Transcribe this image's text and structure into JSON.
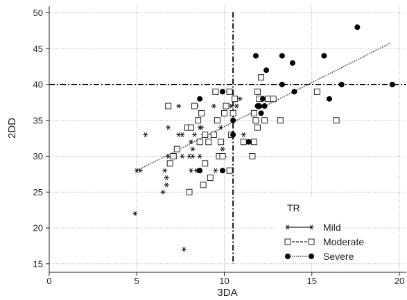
{
  "chart_data": {
    "type": "scatter",
    "xlabel": "3DA",
    "ylabel": "2DD",
    "xlim": [
      0,
      20
    ],
    "ylim": [
      15,
      50
    ],
    "x_ticks": [
      "0",
      "5",
      "10",
      "15",
      "20"
    ],
    "y_ticks": [
      "15",
      "20",
      "25",
      "30",
      "35",
      "40",
      "45",
      "50"
    ],
    "grid": true,
    "reference_lines": {
      "x": 10.5,
      "y": 40
    },
    "trend_line": {
      "from": [
        5,
        28
      ],
      "to": [
        19.5,
        45.8
      ]
    },
    "legend": {
      "title": "TR",
      "placement": "bottom-right",
      "entries": [
        {
          "label": "Mild",
          "marker": "asterisk"
        },
        {
          "label": "Moderate",
          "marker": "square"
        },
        {
          "label": "Severe",
          "marker": "circle"
        }
      ]
    },
    "series": [
      {
        "name": "Mild",
        "points": [
          [
            4.9,
            22
          ],
          [
            5.0,
            28
          ],
          [
            5.2,
            28
          ],
          [
            5.5,
            33
          ],
          [
            6.5,
            25
          ],
          [
            6.7,
            26
          ],
          [
            6.7,
            27
          ],
          [
            6.6,
            28
          ],
          [
            6.8,
            30
          ],
          [
            6.8,
            34
          ],
          [
            7.3,
            31
          ],
          [
            7.4,
            33
          ],
          [
            7.4,
            37
          ],
          [
            7.6,
            33
          ],
          [
            7.6,
            30
          ],
          [
            7.7,
            17
          ],
          [
            7.9,
            34
          ],
          [
            8.0,
            30
          ],
          [
            8.1,
            28
          ],
          [
            8.1,
            32
          ],
          [
            8.2,
            30
          ],
          [
            8.2,
            31
          ],
          [
            8.3,
            33
          ],
          [
            8.4,
            28
          ],
          [
            8.4,
            37
          ],
          [
            8.6,
            34
          ],
          [
            8.6,
            30
          ],
          [
            8.7,
            34
          ],
          [
            8.8,
            33
          ],
          [
            9.3,
            33
          ],
          [
            9.4,
            37
          ],
          [
            9.5,
            28
          ],
          [
            9.8,
            34
          ],
          [
            9.9,
            31
          ],
          [
            10.0,
            30
          ],
          [
            10.2,
            37
          ],
          [
            10.4,
            37
          ],
          [
            10.7,
            37
          ],
          [
            10.9,
            38
          ],
          [
            11.1,
            33
          ],
          [
            11.7,
            36
          ]
        ]
      },
      {
        "name": "Moderate",
        "points": [
          [
            6.8,
            37
          ],
          [
            6.9,
            29
          ],
          [
            7.1,
            30
          ],
          [
            7.3,
            31
          ],
          [
            8.0,
            25
          ],
          [
            7.9,
            34
          ],
          [
            8.1,
            34
          ],
          [
            8.3,
            37
          ],
          [
            8.5,
            35
          ],
          [
            8.6,
            32
          ],
          [
            8.7,
            36
          ],
          [
            8.8,
            26
          ],
          [
            8.9,
            29
          ],
          [
            8.9,
            33
          ],
          [
            9.1,
            32
          ],
          [
            9.2,
            27
          ],
          [
            9.4,
            33
          ],
          [
            9.5,
            39
          ],
          [
            9.6,
            35
          ],
          [
            9.7,
            30
          ],
          [
            9.8,
            32
          ],
          [
            9.9,
            30
          ],
          [
            10.0,
            36
          ],
          [
            10.1,
            37
          ],
          [
            10.3,
            28
          ],
          [
            10.3,
            39
          ],
          [
            10.4,
            33
          ],
          [
            10.5,
            36
          ],
          [
            10.6,
            38
          ],
          [
            11.1,
            32
          ],
          [
            11.6,
            30
          ],
          [
            11.7,
            36
          ],
          [
            11.8,
            35
          ],
          [
            11.7,
            32
          ],
          [
            11.9,
            34
          ],
          [
            11.9,
            39
          ],
          [
            12.0,
            38
          ],
          [
            12.1,
            41
          ],
          [
            12.3,
            35
          ],
          [
            12.5,
            38
          ],
          [
            12.8,
            38
          ],
          [
            13.2,
            35
          ],
          [
            15.3,
            39
          ],
          [
            16.4,
            35
          ]
        ]
      },
      {
        "name": "Severe",
        "points": [
          [
            8.6,
            28
          ],
          [
            8.6,
            38
          ],
          [
            9.9,
            39
          ],
          [
            9.9,
            28
          ],
          [
            10.5,
            35
          ],
          [
            10.5,
            33
          ],
          [
            11.4,
            32
          ],
          [
            11.8,
            44
          ],
          [
            11.9,
            37
          ],
          [
            12.0,
            37
          ],
          [
            12.1,
            36
          ],
          [
            12.2,
            38
          ],
          [
            12.3,
            37
          ],
          [
            12.4,
            42
          ],
          [
            13.3,
            44
          ],
          [
            13.3,
            40
          ],
          [
            13.9,
            43
          ],
          [
            14.0,
            39
          ],
          [
            15.7,
            44
          ],
          [
            16.0,
            38
          ],
          [
            16.7,
            40
          ],
          [
            17.6,
            48
          ],
          [
            19.6,
            40
          ]
        ]
      }
    ]
  }
}
